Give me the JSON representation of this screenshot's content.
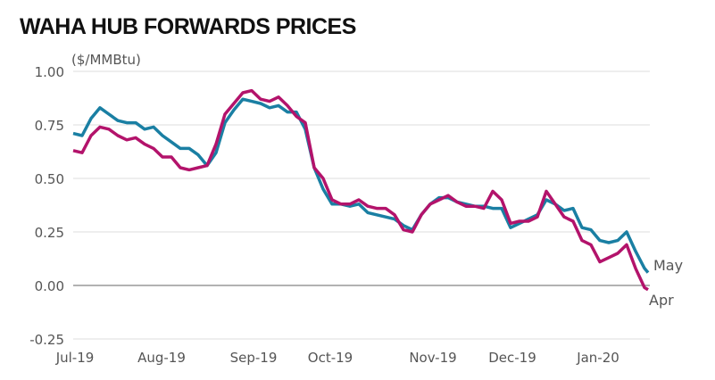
{
  "chart_data": {
    "type": "line",
    "title": "WAHA HUB FORWARDS PRICES",
    "ylabel": "($/MMBtu)",
    "xlabel": "",
    "ylim": [
      -0.25,
      1.0
    ],
    "yticks": [
      "1.00",
      "0.75",
      "0.50",
      "0.25",
      "0.00",
      "-0.25"
    ],
    "ytick_values": [
      1.0,
      0.75,
      0.5,
      0.25,
      0.0,
      -0.25
    ],
    "xticks": [
      {
        "label": "Jul-19",
        "index": 0.2
      },
      {
        "label": "Aug-19",
        "index": 9.9
      },
      {
        "label": "Sep-19",
        "index": 20.2
      },
      {
        "label": "Oct-19",
        "index": 28.8
      },
      {
        "label": "Nov-19",
        "index": 40.3
      },
      {
        "label": "Dec-19",
        "index": 49.2
      },
      {
        "label": "Jan-20",
        "index": 58.8
      }
    ],
    "grid": true,
    "series": [
      {
        "name": "May",
        "color": "#1a7fa3",
        "values": [
          0.71,
          0.7,
          0.78,
          0.83,
          0.8,
          0.77,
          0.76,
          0.76,
          0.73,
          0.74,
          0.7,
          0.67,
          0.64,
          0.64,
          0.61,
          0.56,
          0.62,
          0.76,
          0.82,
          0.87,
          0.86,
          0.85,
          0.83,
          0.84,
          0.81,
          0.81,
          0.73,
          0.55,
          0.45,
          0.38,
          0.38,
          0.37,
          0.38,
          0.34,
          0.33,
          0.32,
          0.31,
          0.28,
          0.26,
          0.33,
          0.38,
          0.41,
          0.41,
          0.39,
          0.38,
          0.37,
          0.37,
          0.36,
          0.36,
          0.27,
          0.29,
          0.31,
          0.33,
          0.4,
          0.38,
          0.35,
          0.36,
          0.27,
          0.26,
          0.21,
          0.2,
          0.21,
          0.25,
          0.16,
          0.08,
          0.06
        ]
      },
      {
        "name": "Apr",
        "color": "#b3136b",
        "values": [
          0.63,
          0.62,
          0.7,
          0.74,
          0.73,
          0.7,
          0.68,
          0.69,
          0.66,
          0.64,
          0.6,
          0.6,
          0.55,
          0.54,
          0.55,
          0.56,
          0.66,
          0.8,
          0.85,
          0.9,
          0.91,
          0.87,
          0.86,
          0.88,
          0.84,
          0.79,
          0.76,
          0.55,
          0.5,
          0.4,
          0.38,
          0.38,
          0.4,
          0.37,
          0.36,
          0.36,
          0.33,
          0.26,
          0.25,
          0.33,
          0.38,
          0.4,
          0.42,
          0.39,
          0.37,
          0.37,
          0.36,
          0.44,
          0.4,
          0.29,
          0.3,
          0.3,
          0.32,
          0.44,
          0.38,
          0.32,
          0.3,
          0.21,
          0.19,
          0.11,
          0.13,
          0.15,
          0.19,
          0.08,
          -0.01,
          -0.02
        ]
      }
    ]
  }
}
